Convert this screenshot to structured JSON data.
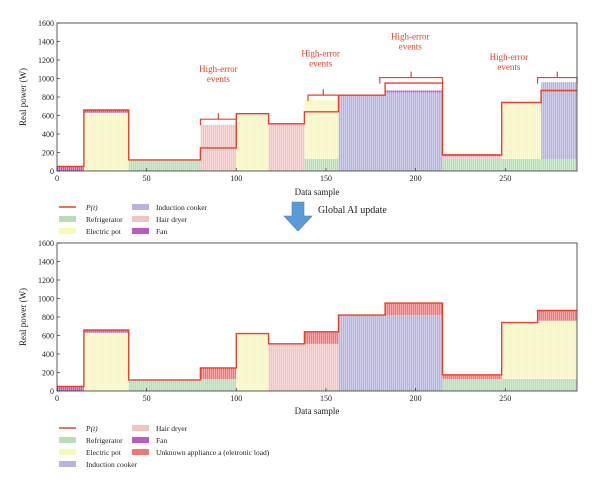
{
  "update_label": "Global AI update",
  "chart_data": [
    {
      "type": "area",
      "id": "top",
      "xlabel": "Data sample",
      "ylabel": "Real power (W)",
      "xlim": [
        0,
        290
      ],
      "ylim": [
        0,
        1600
      ],
      "xticks": [
        0,
        50,
        100,
        150,
        200,
        250
      ],
      "yticks": [
        0,
        200,
        400,
        600,
        800,
        1000,
        1200,
        1400,
        1600
      ],
      "grid": false,
      "legend": "bottom",
      "legend_items": [
        {
          "label": "P(t)",
          "type": "line",
          "color": "#e8412b"
        },
        {
          "label": "Refrigerator",
          "type": "patch",
          "color": "#b7dfb5"
        },
        {
          "label": "Electric pot",
          "type": "patch",
          "color": "#fbf7b9"
        },
        {
          "label": "Induction cooker",
          "type": "patch",
          "color": "#b5b4e0"
        },
        {
          "label": "Hair dryer",
          "type": "patch",
          "color": "#f2c4c1"
        },
        {
          "label": "Fan",
          "type": "patch",
          "color": "#b95bc3"
        }
      ],
      "segments": [
        {
          "x": [
            0,
            15
          ],
          "stack": [
            {
              "a": "Fan",
              "v": 50
            }
          ]
        },
        {
          "x": [
            15,
            40
          ],
          "stack": [
            {
              "a": "Electric pot",
              "v": 630
            },
            {
              "a": "Fan",
              "v": 30
            }
          ]
        },
        {
          "x": [
            40,
            80
          ],
          "stack": [
            {
              "a": "Refrigerator",
              "v": 120
            }
          ]
        },
        {
          "x": [
            80,
            100
          ],
          "stack": [
            {
              "a": "Hair dryer",
              "v": 500
            }
          ]
        },
        {
          "x": [
            100,
            118
          ],
          "stack": [
            {
              "a": "Electric pot",
              "v": 620
            }
          ]
        },
        {
          "x": [
            118,
            138
          ],
          "stack": [
            {
              "a": "Hair dryer",
              "v": 510
            }
          ]
        },
        {
          "x": [
            138,
            157
          ],
          "stack": [
            {
              "a": "Refrigerator",
              "v": 130
            },
            {
              "a": "Electric pot",
              "v": 640
            }
          ]
        },
        {
          "x": [
            157,
            183
          ],
          "stack": [
            {
              "a": "Induction cooker",
              "v": 820
            }
          ]
        },
        {
          "x": [
            183,
            215
          ],
          "stack": [
            {
              "a": "Induction cooker",
              "v": 850
            },
            {
              "a": "Fan",
              "v": 20
            }
          ]
        },
        {
          "x": [
            215,
            248
          ],
          "stack": [
            {
              "a": "Refrigerator",
              "v": 130
            },
            {
              "a": "Hair dryer",
              "v": 30
            },
            {
              "a": "Fan",
              "v": 15
            }
          ]
        },
        {
          "x": [
            248,
            270
          ],
          "stack": [
            {
              "a": "Refrigerator",
              "v": 130
            },
            {
              "a": "Electric pot",
              "v": 610
            }
          ]
        },
        {
          "x": [
            270,
            290
          ],
          "stack": [
            {
              "a": "Refrigerator",
              "v": 130
            },
            {
              "a": "Induction cooker",
              "v": 830
            }
          ]
        }
      ],
      "p_t": [
        [
          0,
          50
        ],
        [
          15,
          50
        ],
        [
          15,
          660
        ],
        [
          40,
          660
        ],
        [
          40,
          120
        ],
        [
          80,
          120
        ],
        [
          80,
          250
        ],
        [
          100,
          250
        ],
        [
          100,
          620
        ],
        [
          118,
          620
        ],
        [
          118,
          510
        ],
        [
          138,
          510
        ],
        [
          138,
          640
        ],
        [
          157,
          640
        ],
        [
          157,
          820
        ],
        [
          183,
          820
        ],
        [
          183,
          950
        ],
        [
          215,
          950
        ],
        [
          215,
          175
        ],
        [
          248,
          175
        ],
        [
          248,
          740
        ],
        [
          270,
          740
        ],
        [
          270,
          870
        ],
        [
          290,
          870
        ]
      ],
      "annotations": [
        {
          "text": "High-error events",
          "x": 90,
          "y": 1070
        },
        {
          "text": "High-error events",
          "x": 147,
          "y": 1240
        },
        {
          "text": "High-error events",
          "x": 197,
          "y": 1420
        },
        {
          "text": "High-error events",
          "x": 252,
          "y": 1200
        }
      ],
      "brackets": [
        {
          "x": [
            80,
            100
          ],
          "y": 560
        },
        {
          "x": [
            140,
            157
          ],
          "y": 820
        },
        {
          "x": [
            180,
            215
          ],
          "y": 1010
        },
        {
          "x": [
            268,
            290
          ],
          "y": 1010
        }
      ]
    },
    {
      "type": "area",
      "id": "bottom",
      "xlabel": "Data sample",
      "ylabel": "Real power (W)",
      "xlim": [
        0,
        290
      ],
      "ylim": [
        0,
        1600
      ],
      "xticks": [
        0,
        50,
        100,
        150,
        200,
        250
      ],
      "yticks": [
        0,
        200,
        400,
        600,
        800,
        1000,
        1200,
        1400,
        1600
      ],
      "grid": false,
      "legend": "bottom",
      "legend_items": [
        {
          "label": "P(t)",
          "type": "line",
          "color": "#e8412b"
        },
        {
          "label": "Refrigerator",
          "type": "patch",
          "color": "#b7dfb5"
        },
        {
          "label": "Electric pot",
          "type": "patch",
          "color": "#fbf7b9"
        },
        {
          "label": "Induction cooker",
          "type": "patch",
          "color": "#b5b4e0"
        },
        {
          "label": "Hair dryer",
          "type": "patch",
          "color": "#f2c4c1"
        },
        {
          "label": "Fan",
          "type": "patch",
          "color": "#b95bc3"
        },
        {
          "label": "Unknown appliance a (eletronic load)",
          "type": "patch",
          "color": "#f0767a"
        }
      ],
      "segments": [
        {
          "x": [
            0,
            15
          ],
          "stack": [
            {
              "a": "Fan",
              "v": 50
            }
          ]
        },
        {
          "x": [
            15,
            40
          ],
          "stack": [
            {
              "a": "Electric pot",
              "v": 630
            },
            {
              "a": "Fan",
              "v": 30
            }
          ]
        },
        {
          "x": [
            40,
            80
          ],
          "stack": [
            {
              "a": "Refrigerator",
              "v": 120
            }
          ]
        },
        {
          "x": [
            80,
            100
          ],
          "stack": [
            {
              "a": "Refrigerator",
              "v": 130
            },
            {
              "a": "Unknown appliance a (eletronic load)",
              "v": 120
            }
          ]
        },
        {
          "x": [
            100,
            118
          ],
          "stack": [
            {
              "a": "Electric pot",
              "v": 620
            }
          ]
        },
        {
          "x": [
            118,
            138
          ],
          "stack": [
            {
              "a": "Hair dryer",
              "v": 510
            }
          ]
        },
        {
          "x": [
            138,
            157
          ],
          "stack": [
            {
              "a": "Hair dryer",
              "v": 510
            },
            {
              "a": "Unknown appliance a (eletronic load)",
              "v": 130
            }
          ]
        },
        {
          "x": [
            157,
            183
          ],
          "stack": [
            {
              "a": "Induction cooker",
              "v": 820
            }
          ]
        },
        {
          "x": [
            183,
            215
          ],
          "stack": [
            {
              "a": "Induction cooker",
              "v": 820
            },
            {
              "a": "Unknown appliance a (eletronic load)",
              "v": 130
            }
          ]
        },
        {
          "x": [
            215,
            248
          ],
          "stack": [
            {
              "a": "Refrigerator",
              "v": 130
            },
            {
              "a": "Unknown appliance a (eletronic load)",
              "v": 45
            }
          ]
        },
        {
          "x": [
            248,
            268
          ],
          "stack": [
            {
              "a": "Refrigerator",
              "v": 130
            },
            {
              "a": "Electric pot",
              "v": 610
            }
          ]
        },
        {
          "x": [
            268,
            290
          ],
          "stack": [
            {
              "a": "Refrigerator",
              "v": 130
            },
            {
              "a": "Electric pot",
              "v": 630
            },
            {
              "a": "Unknown appliance a (eletronic load)",
              "v": 110
            }
          ]
        }
      ],
      "p_t": [
        [
          0,
          50
        ],
        [
          15,
          50
        ],
        [
          15,
          660
        ],
        [
          40,
          660
        ],
        [
          40,
          120
        ],
        [
          80,
          120
        ],
        [
          80,
          250
        ],
        [
          100,
          250
        ],
        [
          100,
          620
        ],
        [
          118,
          620
        ],
        [
          118,
          510
        ],
        [
          138,
          510
        ],
        [
          138,
          640
        ],
        [
          157,
          640
        ],
        [
          157,
          820
        ],
        [
          183,
          820
        ],
        [
          183,
          950
        ],
        [
          215,
          950
        ],
        [
          215,
          175
        ],
        [
          248,
          175
        ],
        [
          248,
          740
        ],
        [
          268,
          740
        ],
        [
          268,
          870
        ],
        [
          290,
          870
        ]
      ]
    }
  ]
}
